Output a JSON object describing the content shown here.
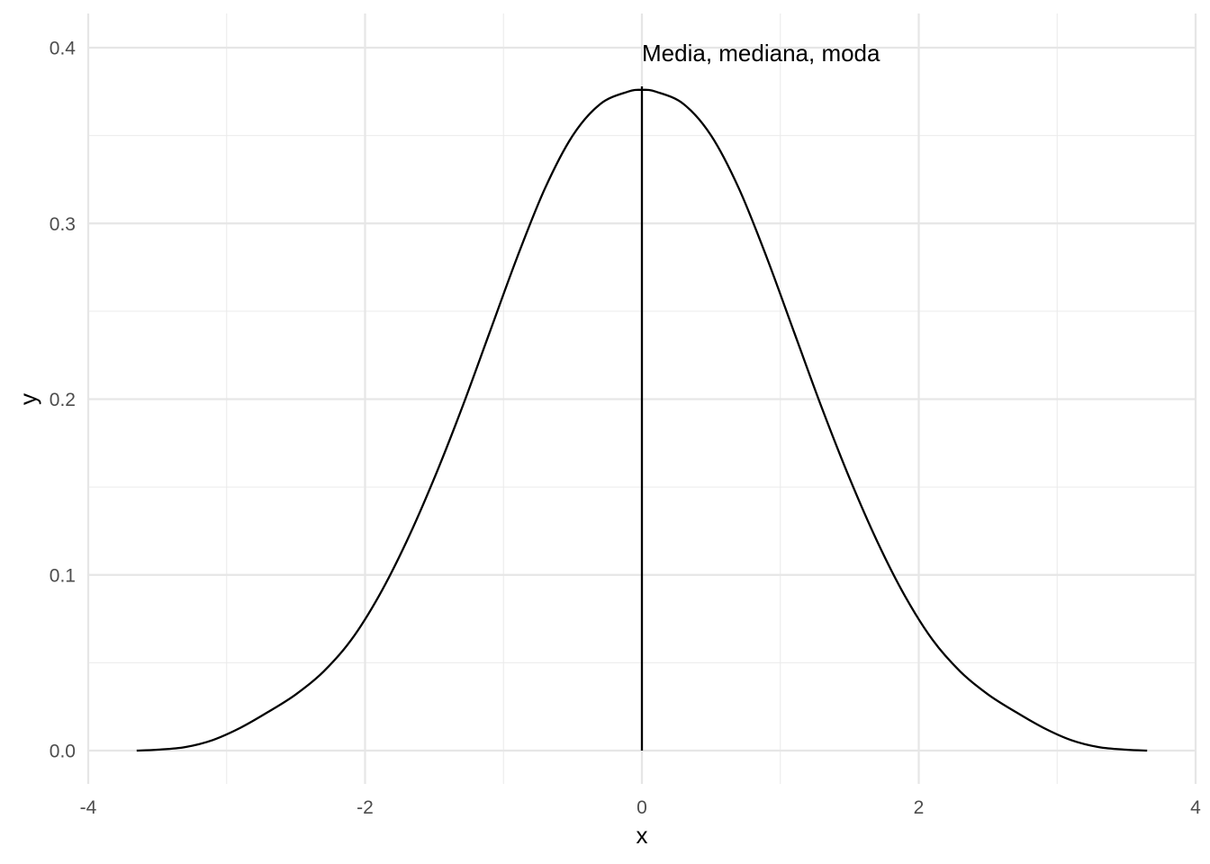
{
  "chart_data": {
    "type": "line",
    "title": "",
    "xlabel": "x",
    "ylabel": "y",
    "xlim": [
      -4,
      4
    ],
    "ylim": [
      0,
      0.4
    ],
    "x_ticks": [
      -4,
      -2,
      0,
      2,
      4
    ],
    "y_ticks": [
      0.0,
      0.1,
      0.2,
      0.3,
      0.4
    ],
    "x_tick_labels": [
      "-4",
      "-2",
      "0",
      "2",
      "4"
    ],
    "y_tick_labels": [
      "0.0",
      "0.1",
      "0.2",
      "0.3",
      "0.4"
    ],
    "grid": true,
    "legend": "none",
    "series": [
      {
        "color": "#000000",
        "x": [
          -3.65,
          -3.5,
          -3.3,
          -3.1,
          -2.9,
          -2.7,
          -2.5,
          -2.3,
          -2.1,
          -1.9,
          -1.7,
          -1.5,
          -1.3,
          -1.1,
          -0.9,
          -0.7,
          -0.5,
          -0.3,
          -0.1,
          0,
          0.1,
          0.3,
          0.5,
          0.7,
          0.9,
          1.1,
          1.3,
          1.5,
          1.7,
          1.9,
          2.1,
          2.3,
          2.5,
          2.7,
          2.9,
          3.1,
          3.3,
          3.5,
          3.65
        ],
        "y": [
          0.0,
          0.0005,
          0.002,
          0.006,
          0.013,
          0.022,
          0.032,
          0.045,
          0.063,
          0.088,
          0.119,
          0.155,
          0.195,
          0.238,
          0.281,
          0.32,
          0.35,
          0.368,
          0.375,
          0.376,
          0.375,
          0.368,
          0.35,
          0.32,
          0.281,
          0.238,
          0.195,
          0.155,
          0.119,
          0.088,
          0.063,
          0.045,
          0.032,
          0.022,
          0.013,
          0.006,
          0.002,
          0.0005,
          0.0
        ]
      }
    ],
    "vline": {
      "x": 0,
      "y_from": 0,
      "y_to": 0.378,
      "color": "#000000"
    },
    "annotation": {
      "text": "Media, mediana, moda",
      "x": 0,
      "y": 0.397
    }
  }
}
